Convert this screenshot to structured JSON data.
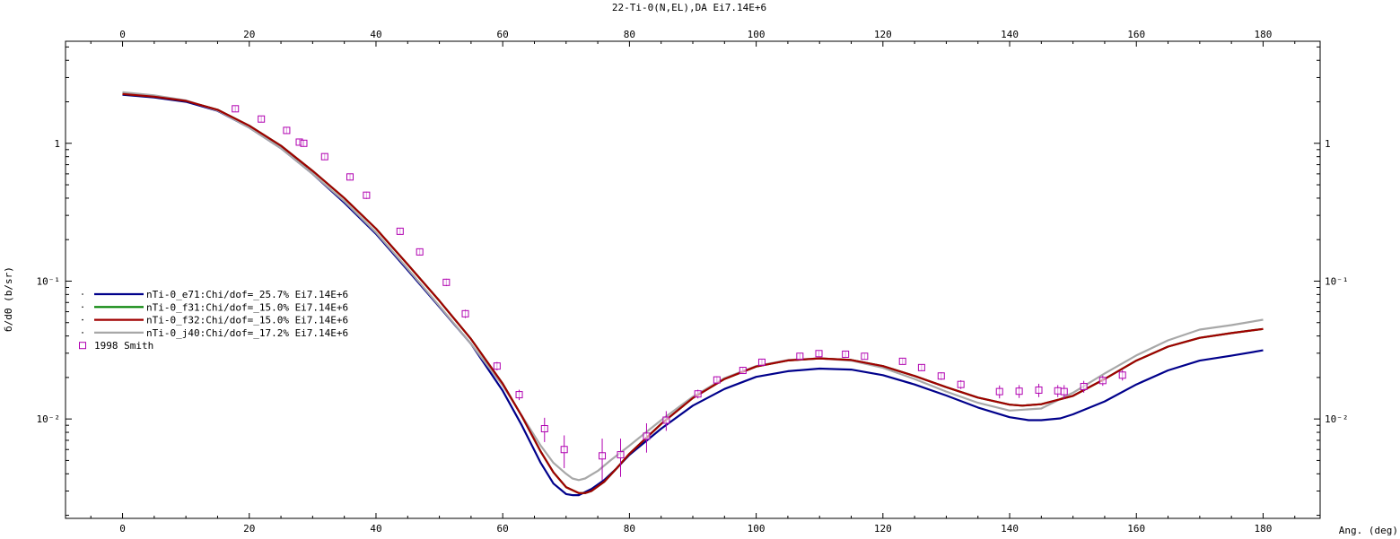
{
  "chart_data": {
    "type": "scatter",
    "title": "22-Ti-0(N,EL),DA Ei7.14E+6",
    "xlabel": "Ang. (deg)",
    "ylabel": "б/dΘ (b/sr)",
    "xlim": [
      -9,
      189
    ],
    "ylim": [
      0.0019,
      5.5
    ],
    "yscale": "log",
    "x_ticks": [
      0,
      20,
      40,
      60,
      80,
      100,
      120,
      140,
      160,
      180
    ],
    "x_tick_labels": [
      "0",
      "20",
      "40",
      "60",
      "80",
      "100",
      "120",
      "140",
      "160",
      "180"
    ],
    "y_major_ticks": [
      0.01,
      0.1,
      1
    ],
    "y_tick_labels": [
      "10⁻²",
      "10⁻¹",
      "1"
    ],
    "legend_position": "left-middle",
    "series": [
      {
        "name": "nTi-0_e71:Chi/dof=_25.7% Ei7.14E+6",
        "kind": "line",
        "color": "#00008b",
        "x": [
          0,
          5,
          10,
          15,
          20,
          25,
          30,
          35,
          40,
          45,
          50,
          55,
          60,
          63,
          66,
          68,
          70,
          71,
          72,
          74,
          76,
          78,
          80,
          85,
          90,
          95,
          100,
          105,
          110,
          115,
          120,
          125,
          130,
          135,
          140,
          143,
          145,
          148,
          150,
          155,
          160,
          165,
          170,
          175,
          180
        ],
        "y": [
          2.25,
          2.15,
          2.0,
          1.72,
          1.3,
          0.92,
          0.6,
          0.37,
          0.22,
          0.12,
          0.065,
          0.035,
          0.016,
          0.009,
          0.0048,
          0.0034,
          0.00285,
          0.0028,
          0.0028,
          0.0031,
          0.0036,
          0.0044,
          0.0055,
          0.0085,
          0.0125,
          0.0165,
          0.0202,
          0.0222,
          0.0232,
          0.0228,
          0.0208,
          0.0178,
          0.0148,
          0.0121,
          0.0103,
          0.0098,
          0.0098,
          0.0101,
          0.0108,
          0.0134,
          0.0178,
          0.0225,
          0.0265,
          0.0288,
          0.0315
        ]
      },
      {
        "name": "nTi-0_f31:Chi/dof=_15.0% Ei7.14E+6",
        "kind": "line",
        "color": "#008000",
        "x": [
          0,
          5,
          10,
          15,
          20,
          25,
          30,
          35,
          40,
          45,
          50,
          55,
          60,
          63,
          66,
          68,
          70,
          72,
          73,
          74,
          76,
          78,
          80,
          85,
          90,
          95,
          100,
          105,
          110,
          115,
          120,
          125,
          130,
          135,
          140,
          142,
          145,
          150,
          155,
          160,
          165,
          170,
          175,
          180
        ],
        "y": [
          2.28,
          2.18,
          2.03,
          1.75,
          1.34,
          0.96,
          0.63,
          0.4,
          0.24,
          0.132,
          0.072,
          0.038,
          0.018,
          0.0105,
          0.0058,
          0.0041,
          0.0032,
          0.0029,
          0.0029,
          0.003,
          0.0035,
          0.0044,
          0.0056,
          0.0092,
          0.0142,
          0.0195,
          0.024,
          0.0266,
          0.0275,
          0.0268,
          0.0242,
          0.0205,
          0.017,
          0.0143,
          0.0127,
          0.0125,
          0.0128,
          0.0147,
          0.0195,
          0.0265,
          0.0335,
          0.0388,
          0.042,
          0.045
        ]
      },
      {
        "name": "nTi-0_f32:Chi/dof=_15.0% Ei7.14E+6",
        "kind": "line",
        "color": "#a00000",
        "x": [
          0,
          5,
          10,
          15,
          20,
          25,
          30,
          35,
          40,
          45,
          50,
          55,
          60,
          63,
          66,
          68,
          70,
          72,
          73,
          74,
          76,
          78,
          80,
          85,
          90,
          95,
          100,
          105,
          110,
          115,
          120,
          125,
          130,
          135,
          140,
          142,
          145,
          150,
          155,
          160,
          165,
          170,
          175,
          180
        ],
        "y": [
          2.28,
          2.18,
          2.03,
          1.75,
          1.34,
          0.96,
          0.63,
          0.4,
          0.24,
          0.132,
          0.072,
          0.038,
          0.018,
          0.0105,
          0.0058,
          0.0041,
          0.0032,
          0.0029,
          0.0029,
          0.003,
          0.0035,
          0.0044,
          0.0056,
          0.0092,
          0.0142,
          0.0195,
          0.024,
          0.0266,
          0.0275,
          0.0268,
          0.0242,
          0.0205,
          0.017,
          0.0143,
          0.0127,
          0.0125,
          0.0128,
          0.0147,
          0.0195,
          0.0265,
          0.0335,
          0.0388,
          0.042,
          0.045
        ]
      },
      {
        "name": "nTi-0_j40:Chi/dof=_17.2% Ei7.14E+6",
        "kind": "line",
        "color": "#a8a8a8",
        "x": [
          0,
          5,
          10,
          15,
          20,
          25,
          30,
          35,
          40,
          45,
          50,
          55,
          60,
          63,
          66,
          68,
          70,
          71,
          72,
          73,
          75,
          77,
          80,
          85,
          90,
          95,
          100,
          105,
          110,
          115,
          120,
          125,
          130,
          135,
          140,
          145,
          150,
          155,
          160,
          165,
          170,
          175,
          180
        ],
        "y": [
          2.35,
          2.23,
          2.05,
          1.73,
          1.3,
          0.92,
          0.6,
          0.38,
          0.225,
          0.123,
          0.066,
          0.035,
          0.0175,
          0.0106,
          0.0064,
          0.0048,
          0.004,
          0.0037,
          0.0036,
          0.0037,
          0.0042,
          0.005,
          0.0064,
          0.0098,
          0.0145,
          0.0198,
          0.0242,
          0.0268,
          0.0275,
          0.0265,
          0.0235,
          0.0195,
          0.0158,
          0.0131,
          0.0115,
          0.0119,
          0.0155,
          0.0214,
          0.0289,
          0.0372,
          0.0445,
          0.048,
          0.0525
        ]
      },
      {
        "name": "1998 Smith",
        "kind": "points",
        "color": "#b000b0",
        "x": [
          17.8,
          21.9,
          25.9,
          27.9,
          28.6,
          31.9,
          35.9,
          38.5,
          43.8,
          46.9,
          51.1,
          54.1,
          59.1,
          62.6,
          66.6,
          69.7,
          75.7,
          78.6,
          82.7,
          85.8,
          90.8,
          93.8,
          97.9,
          100.9,
          106.9,
          109.9,
          114.1,
          117.1,
          123.1,
          126.1,
          129.2,
          132.3,
          138.4,
          141.5,
          144.6,
          147.6,
          148.6,
          151.7,
          154.7,
          157.8
        ],
        "y": [
          1.78,
          1.5,
          1.24,
          1.02,
          1.0,
          0.8,
          0.57,
          0.42,
          0.23,
          0.163,
          0.098,
          0.058,
          0.0242,
          0.015,
          0.0085,
          0.006,
          0.0054,
          0.0055,
          0.0075,
          0.0098,
          0.0152,
          0.0192,
          0.0225,
          0.0258,
          0.0285,
          0.0298,
          0.0295,
          0.0285,
          0.0262,
          0.0236,
          0.0205,
          0.0178,
          0.0158,
          0.0159,
          0.0162,
          0.016,
          0.0158,
          0.0172,
          0.019,
          0.0208
        ],
        "err": [
          0.08,
          0.07,
          0.06,
          0.05,
          0.05,
          0.04,
          0.03,
          0.025,
          0.012,
          0.009,
          0.006,
          0.004,
          0.0017,
          0.0013,
          0.0017,
          0.0016,
          0.0018,
          0.0017,
          0.0018,
          0.0016,
          0.0011,
          0.0012,
          0.0013,
          0.0013,
          0.0013,
          0.0013,
          0.0013,
          0.0013,
          0.0013,
          0.0013,
          0.0013,
          0.0013,
          0.0017,
          0.0017,
          0.0018,
          0.0016,
          0.0018,
          0.0017,
          0.0016,
          0.0018
        ]
      }
    ]
  }
}
